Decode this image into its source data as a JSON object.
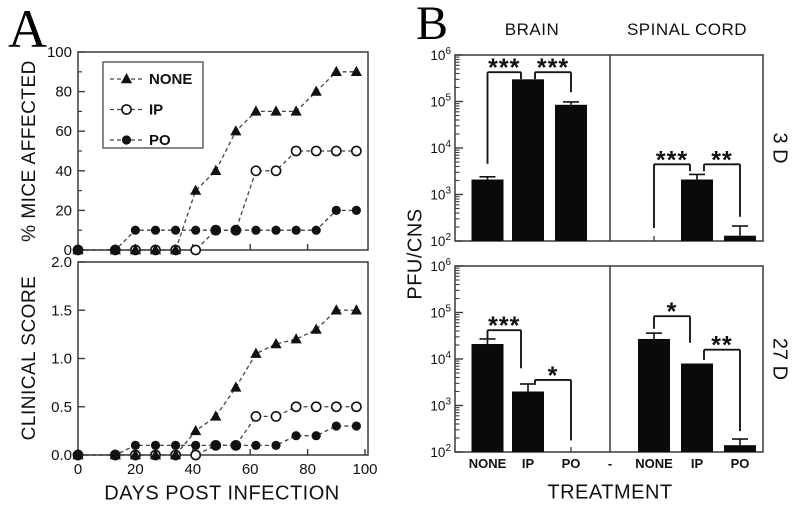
{
  "labels": {
    "panel_a": "A",
    "panel_b": "B"
  },
  "chart_data": [
    {
      "type": "line",
      "panel": "A-top",
      "ylabel": "% MICE AFFECTED",
      "ylim": [
        0,
        100
      ],
      "yticks": [
        0,
        20,
        40,
        60,
        80,
        100
      ],
      "yminor_step": 10,
      "xlim": [
        0,
        100
      ],
      "xticks_unlabeled": [
        20,
        40,
        60,
        80
      ],
      "legend_position": "upper-left",
      "x_days": [
        0,
        13,
        20,
        27,
        34,
        41,
        48,
        55,
        62,
        69,
        76,
        83,
        90,
        97
      ],
      "series": [
        {
          "name": "NONE",
          "marker": "filled-triangle",
          "values": [
            0,
            0,
            0,
            0,
            0,
            30,
            40,
            60,
            70,
            70,
            70,
            80,
            90,
            90
          ]
        },
        {
          "name": "IP",
          "marker": "open-circle",
          "values": [
            0,
            0,
            0,
            0,
            0,
            0,
            10,
            10,
            40,
            40,
            50,
            50,
            50,
            50
          ]
        },
        {
          "name": "PO",
          "marker": "filled-circle",
          "values": [
            0,
            0,
            10,
            10,
            10,
            10,
            10,
            10,
            10,
            10,
            10,
            10,
            20,
            20
          ]
        }
      ]
    },
    {
      "type": "line",
      "panel": "A-bottom",
      "ylabel": "CLINICAL SCORE",
      "xlabel": "DAYS POST INFECTION",
      "ylim": [
        0,
        2.0
      ],
      "ytick_labels": [
        "0.0",
        "0.5",
        "1.0",
        "1.5",
        "2.0"
      ],
      "xlim": [
        0,
        100
      ],
      "xtick_labels": [
        "0",
        "20",
        "40",
        "60",
        "80",
        "100"
      ],
      "x_days": [
        0,
        13,
        20,
        27,
        34,
        41,
        48,
        55,
        62,
        69,
        76,
        83,
        90,
        97
      ],
      "series": [
        {
          "name": "NONE",
          "marker": "filled-triangle",
          "values": [
            0,
            0,
            0,
            0,
            0,
            0.25,
            0.4,
            0.7,
            1.05,
            1.15,
            1.2,
            1.3,
            1.5,
            1.5
          ]
        },
        {
          "name": "IP",
          "marker": "open-circle",
          "values": [
            0,
            0,
            0,
            0,
            0,
            0,
            0.1,
            0.1,
            0.4,
            0.4,
            0.5,
            0.5,
            0.5,
            0.5
          ]
        },
        {
          "name": "PO",
          "marker": "filled-circle",
          "values": [
            0,
            0,
            0.1,
            0.1,
            0.1,
            0.1,
            0.1,
            0.1,
            0.1,
            0.1,
            0.2,
            0.2,
            0.3,
            0.3
          ]
        }
      ]
    },
    {
      "type": "bar",
      "panel": "B",
      "ylabel": "PFU/CNS",
      "xlabel": "TREATMENT",
      "yscale": "log",
      "ylim_exponents": [
        2,
        6
      ],
      "ytick_base": "10",
      "ytick_exponents": [
        2,
        3,
        4,
        5,
        6
      ],
      "col_headers": [
        "BRAIN",
        "SPINAL CORD"
      ],
      "row_labels": [
        "3 D",
        "27 D"
      ],
      "categories": [
        "NONE",
        "IP",
        "PO"
      ],
      "separator_label": "-",
      "subplots": [
        {
          "row": "3 D",
          "col": "BRAIN",
          "values": [
            2100,
            300000,
            85000
          ],
          "error_tops": [
            2400,
            null,
            98000
          ],
          "brackets": [
            {
              "from": 0,
              "to": 1,
              "stars": "***",
              "y_exp": 5.63,
              "drop_from_exp": 3.66,
              "drop_to_exp": 5.48
            },
            {
              "from": 1,
              "to": 2,
              "stars": "***",
              "y_exp": 5.63,
              "drop_from_exp": 5.48,
              "drop_to_exp": 5.2
            }
          ]
        },
        {
          "row": "3 D",
          "col": "SPINAL CORD",
          "values": [
            null,
            2100,
            130
          ],
          "error_tops": [
            null,
            2700,
            210
          ],
          "brackets": [
            {
              "from": 0,
              "to": 1,
              "stars": "***",
              "y_exp": 3.65,
              "drop_from_exp": 2.28,
              "drop_to_exp": 3.5
            },
            {
              "from": 1,
              "to": 2,
              "stars": "**",
              "y_exp": 3.65,
              "drop_from_exp": 3.5,
              "drop_to_exp": 2.52
            }
          ]
        },
        {
          "row": "27 D",
          "col": "BRAIN",
          "values": [
            21000,
            2000,
            null
          ],
          "error_tops": [
            27000,
            2900,
            null
          ],
          "brackets": [
            {
              "from": 0,
              "to": 1,
              "stars": "***",
              "y_exp": 4.62,
              "drop_from_exp": 4.45,
              "drop_to_exp": 3.8
            },
            {
              "from": 1,
              "to": 2,
              "stars": "*",
              "y_exp": 3.55,
              "drop_from_exp": 3.48,
              "drop_to_exp": 2.25
            }
          ]
        },
        {
          "row": "27 D",
          "col": "SPINAL CORD",
          "values": [
            27000,
            8000,
            140
          ],
          "error_tops": [
            36000,
            null,
            190
          ],
          "brackets": [
            {
              "from": 0,
              "to": 1,
              "stars": "*",
              "y_exp": 4.92,
              "drop_from_exp": 4.65,
              "drop_to_exp": 4.35
            },
            {
              "from": 1,
              "to": 2,
              "stars": "**",
              "y_exp": 4.2,
              "drop_from_exp": 3.98,
              "drop_to_exp": 2.45
            }
          ]
        }
      ]
    }
  ]
}
